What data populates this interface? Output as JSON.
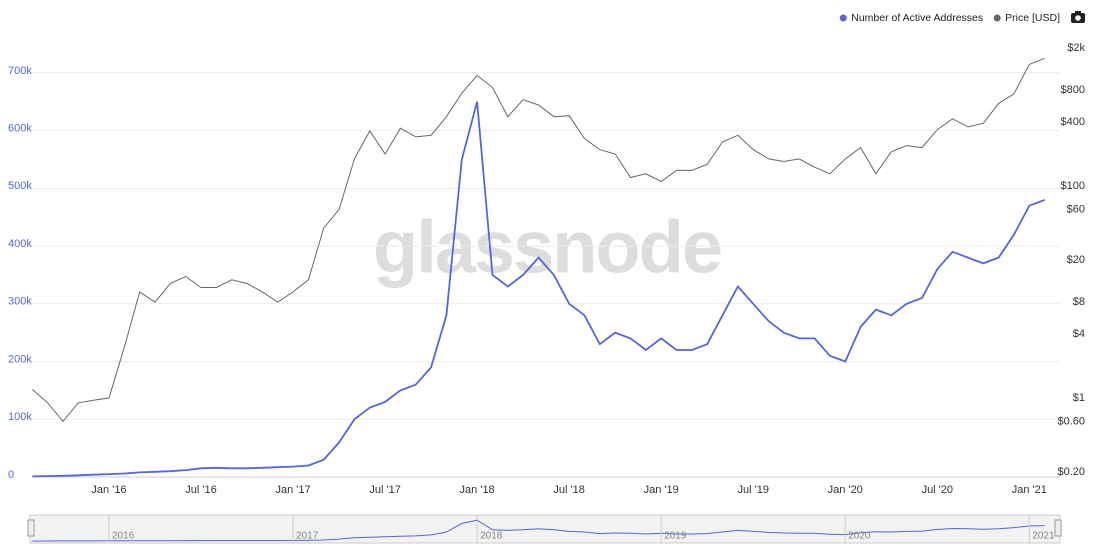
{
  "chart_data": {
    "type": "line",
    "watermark": "glassnode",
    "x": [
      "2015-08",
      "2015-09",
      "2015-10",
      "2015-11",
      "2015-12",
      "2016-01",
      "2016-02",
      "2016-03",
      "2016-04",
      "2016-05",
      "2016-06",
      "2016-07",
      "2016-08",
      "2016-09",
      "2016-10",
      "2016-11",
      "2016-12",
      "2017-01",
      "2017-02",
      "2017-03",
      "2017-04",
      "2017-05",
      "2017-06",
      "2017-07",
      "2017-08",
      "2017-09",
      "2017-10",
      "2017-11",
      "2017-12",
      "2018-01",
      "2018-02",
      "2018-03",
      "2018-04",
      "2018-05",
      "2018-06",
      "2018-07",
      "2018-08",
      "2018-09",
      "2018-10",
      "2018-11",
      "2018-12",
      "2019-01",
      "2019-02",
      "2019-03",
      "2019-04",
      "2019-05",
      "2019-06",
      "2019-07",
      "2019-08",
      "2019-09",
      "2019-10",
      "2019-11",
      "2019-12",
      "2020-01",
      "2020-02",
      "2020-03",
      "2020-04",
      "2020-05",
      "2020-06",
      "2020-07",
      "2020-08",
      "2020-09",
      "2020-10",
      "2020-11",
      "2020-12",
      "2021-01",
      "2021-02"
    ],
    "series": [
      {
        "name": "Number of Active Addresses",
        "color": "#5566dd",
        "axis": "y",
        "values": [
          1000,
          1500,
          2000,
          3000,
          4000,
          5000,
          6000,
          8000,
          9000,
          10000,
          12000,
          15000,
          16000,
          15000,
          15000,
          16000,
          17000,
          18000,
          20000,
          30000,
          60000,
          100000,
          120000,
          130000,
          150000,
          160000,
          190000,
          280000,
          550000,
          650000,
          350000,
          330000,
          350000,
          380000,
          350000,
          300000,
          280000,
          230000,
          250000,
          240000,
          220000,
          240000,
          220000,
          220000,
          230000,
          280000,
          330000,
          300000,
          270000,
          250000,
          240000,
          240000,
          210000,
          200000,
          260000,
          290000,
          280000,
          300000,
          310000,
          360000,
          390000,
          380000,
          370000,
          380000,
          420000,
          470000,
          480000
        ]
      },
      {
        "name": "Price [USD]",
        "color": "#666666",
        "axis": "y2",
        "values": [
          1.2,
          0.9,
          0.6,
          0.9,
          0.95,
          1.0,
          3.0,
          10,
          8,
          12,
          14,
          11,
          11,
          13,
          12,
          10,
          8,
          10,
          13,
          40,
          60,
          180,
          330,
          200,
          350,
          290,
          300,
          450,
          750,
          1100,
          850,
          450,
          650,
          580,
          450,
          460,
          280,
          220,
          200,
          120,
          130,
          110,
          140,
          140,
          160,
          260,
          300,
          220,
          180,
          170,
          180,
          150,
          130,
          180,
          230,
          130,
          210,
          240,
          230,
          340,
          430,
          360,
          390,
          600,
          740,
          1400,
          1600
        ]
      }
    ],
    "xlim": [
      "2015-08",
      "2021-03"
    ],
    "xticks": [
      {
        "value": "2016-01",
        "label": "Jan '16"
      },
      {
        "value": "2016-07",
        "label": "Jul '16"
      },
      {
        "value": "2017-01",
        "label": "Jan '17"
      },
      {
        "value": "2017-07",
        "label": "Jul '17"
      },
      {
        "value": "2018-01",
        "label": "Jan '18"
      },
      {
        "value": "2018-07",
        "label": "Jul '18"
      },
      {
        "value": "2019-01",
        "label": "Jan '19"
      },
      {
        "value": "2019-07",
        "label": "Jul '19"
      },
      {
        "value": "2020-01",
        "label": "Jan '20"
      },
      {
        "value": "2020-07",
        "label": "Jul '20"
      },
      {
        "value": "2021-01",
        "label": "Jan '21"
      }
    ],
    "ylim": [
      0,
      750000
    ],
    "yticks": [
      0,
      {
        "value": 100000,
        "label": "100k"
      },
      {
        "value": 200000,
        "label": "200k"
      },
      {
        "value": 300000,
        "label": "300k"
      },
      {
        "value": 400000,
        "label": "400k"
      },
      {
        "value": 500000,
        "label": "500k"
      },
      {
        "value": 600000,
        "label": "600k"
      },
      {
        "value": 700000,
        "label": "700k"
      }
    ],
    "y2lim": [
      0.2,
      2000
    ],
    "y2_log": true,
    "y2ticks": [
      {
        "value": 2000,
        "label": "$2k"
      },
      {
        "value": 800,
        "label": "$800"
      },
      {
        "value": 400,
        "label": "$400"
      },
      {
        "value": 100,
        "label": "$100"
      },
      {
        "value": 60,
        "label": "$60"
      },
      {
        "value": 20,
        "label": "$20"
      },
      {
        "value": 8,
        "label": "$8"
      },
      {
        "value": 4,
        "label": "$4"
      },
      {
        "value": 1,
        "label": "$1"
      },
      {
        "value": 0.6,
        "label": "$0.60"
      },
      {
        "value": 0.2,
        "label": "$0.20"
      }
    ],
    "grid": true,
    "legend": "top-right",
    "navigator_ticks": [
      {
        "value": "2016-01",
        "label": "2016"
      },
      {
        "value": "2017-01",
        "label": "2017"
      },
      {
        "value": "2018-01",
        "label": "2018"
      },
      {
        "value": "2019-01",
        "label": "2019"
      },
      {
        "value": "2020-01",
        "label": "2020"
      },
      {
        "value": "2021-01",
        "label": "2021"
      }
    ]
  }
}
